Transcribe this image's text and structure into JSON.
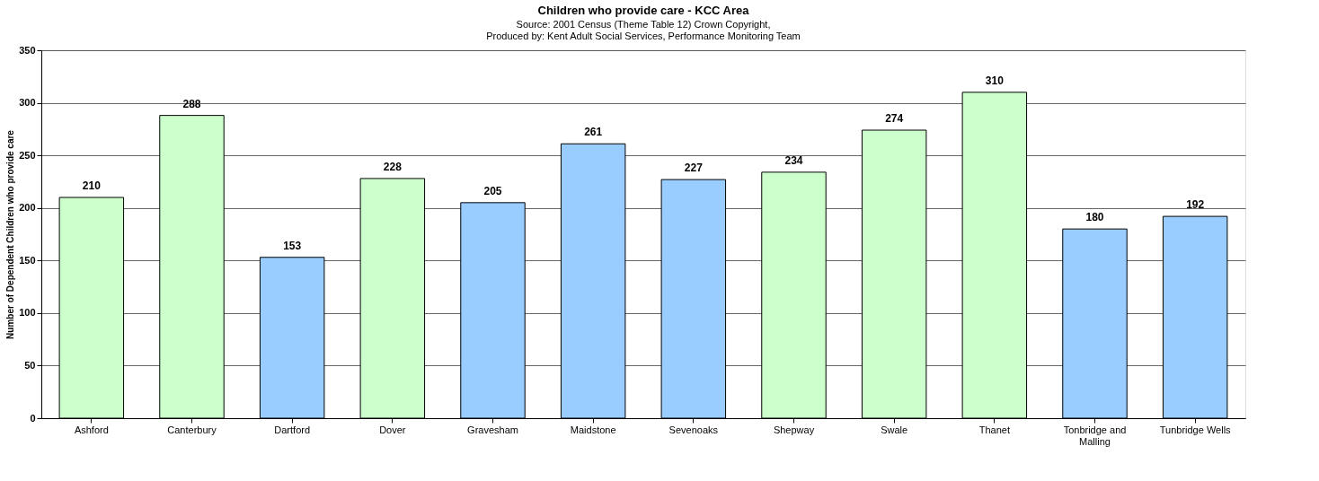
{
  "chart_data": {
    "type": "bar",
    "title": "Children who provide care - KCC Area",
    "subtitle": "Source: 2001 Census (Theme Table 12) Crown Copyright,\nProduced by: Kent Adult Social Services, Performance Monitoring Team",
    "ylabel": "Number of Dependent Children who provide care",
    "categories": [
      "Ashford",
      "Canterbury",
      "Dartford",
      "Dover",
      "Gravesham",
      "Maidstone",
      "Sevenoaks",
      "Shepway",
      "Swale",
      "Thanet",
      "Tonbridge and Malling",
      "Tunbridge Wells"
    ],
    "values": [
      210,
      288,
      153,
      228,
      205,
      261,
      227,
      234,
      274,
      310,
      180,
      192
    ],
    "colors": [
      "#ccffcc",
      "#ccffcc",
      "#99ccff",
      "#ccffcc",
      "#99ccff",
      "#99ccff",
      "#99ccff",
      "#ccffcc",
      "#ccffcc",
      "#ccffcc",
      "#99ccff",
      "#99ccff"
    ],
    "ylim": [
      0,
      350
    ],
    "yticks": [
      0,
      50,
      100,
      150,
      200,
      250,
      300,
      350
    ],
    "grid": "y",
    "data_labels": true
  }
}
